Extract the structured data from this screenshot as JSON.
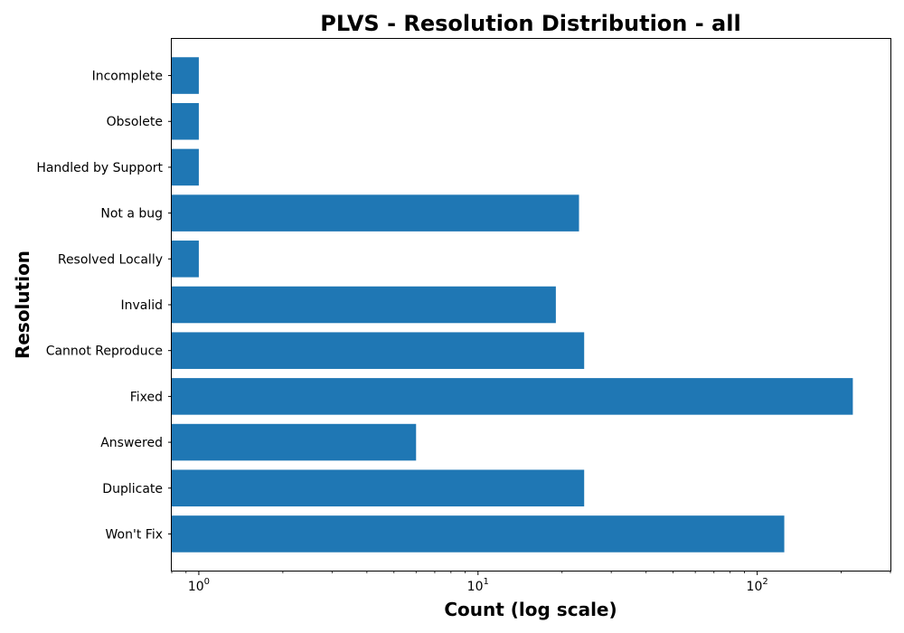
{
  "chart_data": {
    "type": "bar",
    "orientation": "horizontal",
    "title": "PLVS - Resolution Distribution - all",
    "xlabel": "Count (log scale)",
    "ylabel": "Resolution",
    "xscale": "log",
    "xlim": [
      0.8,
      300
    ],
    "xticks": [
      {
        "value": 1,
        "base": "10",
        "exp": "0"
      },
      {
        "value": 10,
        "base": "10",
        "exp": "1"
      },
      {
        "value": 100,
        "base": "10",
        "exp": "2"
      }
    ],
    "grid": false,
    "bar_color": "#1f77b4",
    "categories": [
      "Won't Fix",
      "Duplicate",
      "Answered",
      "Fixed",
      "Cannot Reproduce",
      "Invalid",
      "Resolved Locally",
      "Not a bug",
      "Handled by Support",
      "Obsolete",
      "Incomplete"
    ],
    "values": [
      125,
      24,
      6,
      220,
      24,
      19,
      1,
      23,
      1,
      1,
      1
    ]
  }
}
